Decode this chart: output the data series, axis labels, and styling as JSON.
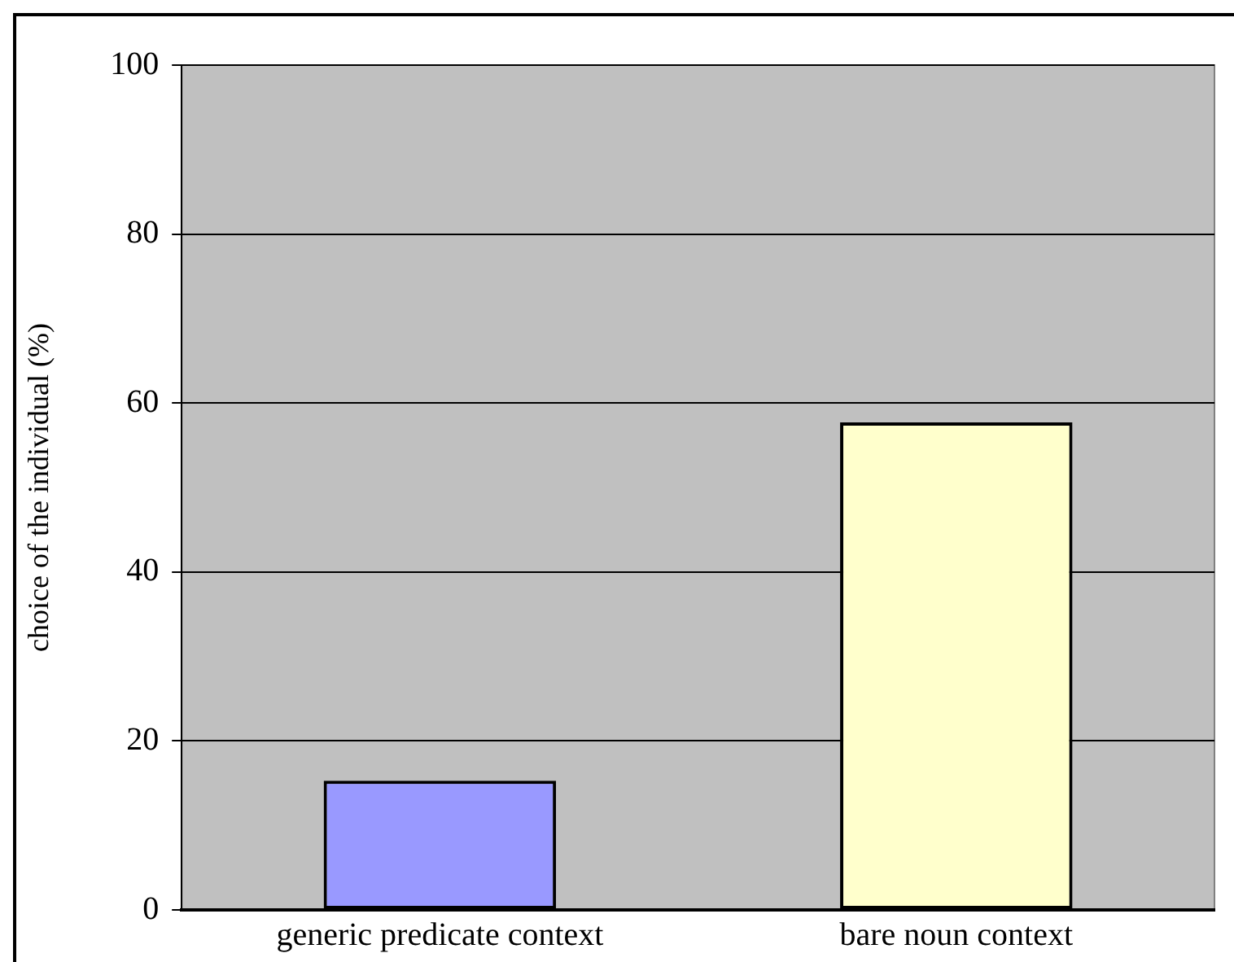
{
  "chart_data": {
    "type": "bar",
    "ylabel": "choice of the individual (%)",
    "categories": [
      "generic predicate context",
      "bare noun context"
    ],
    "values": [
      15.3,
      57.7
    ],
    "colors": [
      "#9999ff",
      "#ffffcc"
    ],
    "ylim": [
      0,
      100
    ],
    "yticks": [
      0,
      20,
      40,
      60,
      80,
      100
    ],
    "grid": "y",
    "legend": false
  }
}
